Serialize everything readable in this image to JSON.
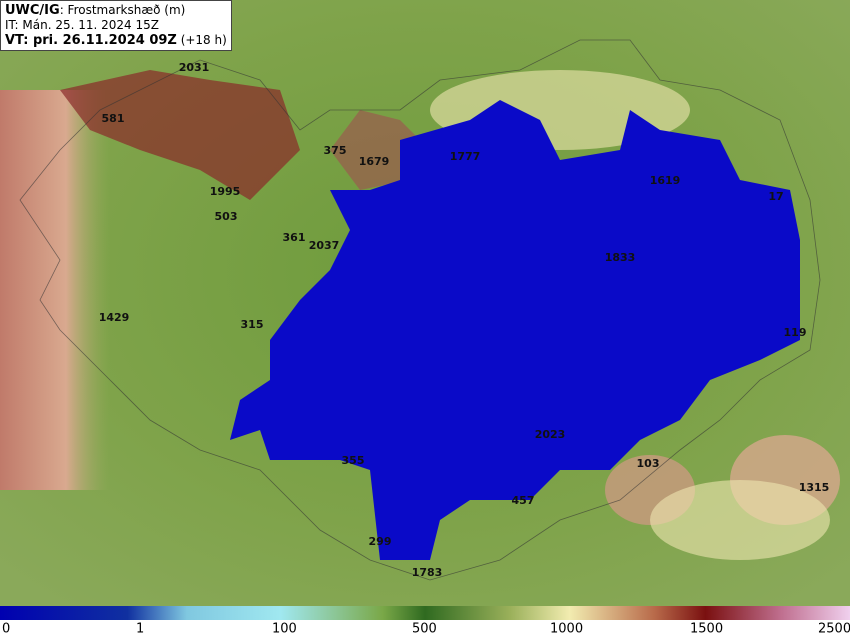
{
  "header": {
    "model": "UWC/IG",
    "field": ": Frostmarkshæð (m)",
    "initial_time": "IT: Mán. 25. 11. 2024 15Z",
    "valid_time": "VT: pri. 26.11.2024 09Z",
    "lead": " (+18 h)"
  },
  "map_labels": [
    "2031",
    "581",
    "375",
    "1679",
    "1777",
    "1619",
    "17",
    "1995",
    "503",
    "361",
    "2037",
    "1833",
    "1429",
    "315",
    "119",
    "2023",
    "103",
    "355",
    "457",
    "1315",
    "299",
    "1783"
  ],
  "colorbar": {
    "ticks": [
      "0",
      "1",
      "100",
      "500",
      "1000",
      "1500",
      "2500"
    ]
  }
}
